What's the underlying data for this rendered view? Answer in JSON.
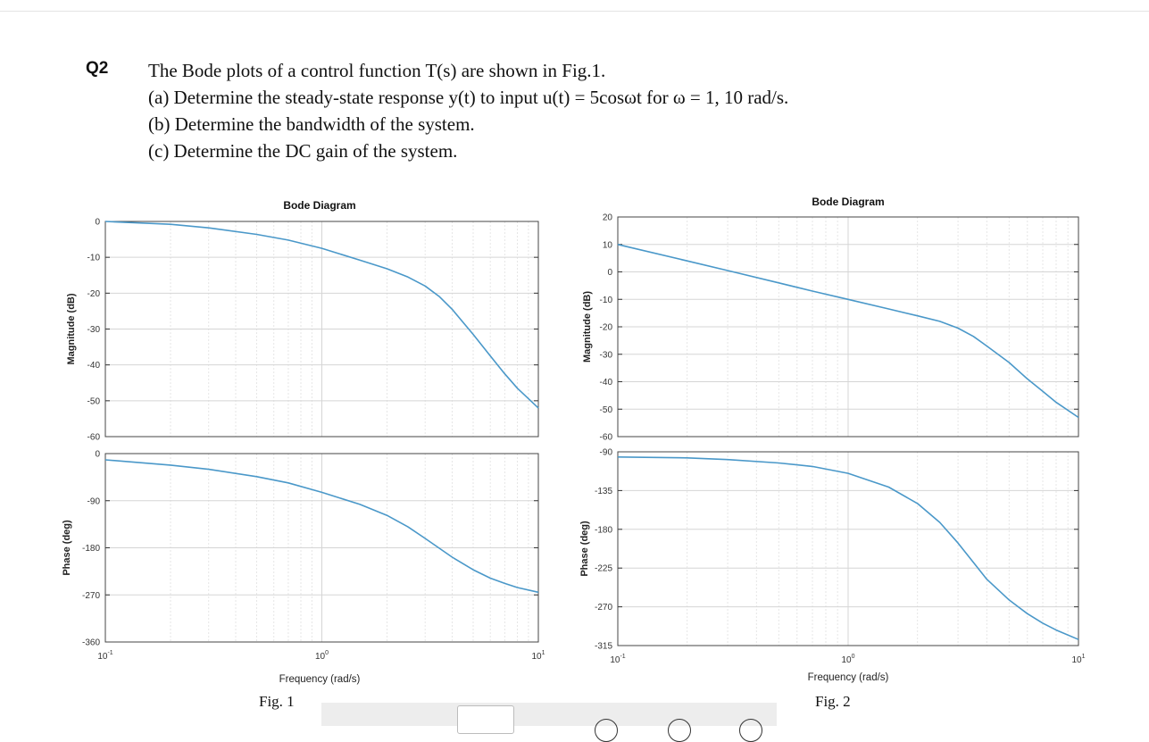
{
  "question": {
    "label": "Q2",
    "intro": "The Bode plots of a control function T(s) are shown in Fig.1.",
    "parts": [
      "(a)  Determine the steady-state response y(t) to input u(t) = 5cosωt for ω = 1,  10 rad/s.",
      "(b)  Determine the bandwidth of the system.",
      "(c)  Determine the DC gain of the system."
    ]
  },
  "chart_data": [
    {
      "type": "line",
      "title": "Bode Diagram",
      "caption": "Fig. 1",
      "xlabel": "Frequency (rad/s)",
      "xscale": "log",
      "xlim": [
        0.1,
        10
      ],
      "xticks": [
        "10-1",
        "100",
        "101"
      ],
      "magnitude": {
        "ylabel": "Magnitude (dB)",
        "ylim": [
          -60,
          0
        ],
        "yticks": [
          0,
          -10,
          -20,
          -30,
          -40,
          -50,
          -60
        ],
        "x": [
          0.1,
          0.2,
          0.3,
          0.5,
          0.7,
          1.0,
          1.5,
          2.0,
          2.5,
          3.0,
          3.5,
          4.0,
          5.0,
          6.0,
          7.0,
          8.0,
          10.0
        ],
        "y": [
          0,
          -0.8,
          -1.8,
          -3.6,
          -5.2,
          -7.5,
          -10.8,
          -13.2,
          -15.5,
          -18,
          -21,
          -24.5,
          -31.5,
          -37.5,
          -42.5,
          -46.5,
          -52
        ]
      },
      "phase": {
        "ylabel": "Phase (deg)",
        "ylim": [
          -360,
          0
        ],
        "yticks": [
          0,
          -90,
          -180,
          -270,
          -360
        ],
        "x": [
          0.1,
          0.2,
          0.3,
          0.5,
          0.7,
          1.0,
          1.5,
          2.0,
          2.5,
          3.0,
          4.0,
          5.0,
          6.0,
          7.0,
          8.0,
          10.0
        ],
        "y": [
          -12,
          -22,
          -30,
          -44,
          -56,
          -74,
          -97,
          -118,
          -140,
          -162,
          -198,
          -222,
          -238,
          -248,
          -256,
          -265
        ]
      },
      "grid": true
    },
    {
      "type": "line",
      "title": "Bode Diagram",
      "caption": "Fig. 2",
      "xlabel": "Frequency (rad/s)",
      "xscale": "log",
      "xlim": [
        0.1,
        10
      ],
      "xticks": [
        "10-1",
        "100",
        "101"
      ],
      "magnitude": {
        "ylabel": "Magnitude (dB)",
        "ylim": [
          -60,
          20
        ],
        "yticks": [
          20,
          10,
          0,
          -10,
          -20,
          -30,
          -40,
          -50,
          -60
        ],
        "x": [
          0.1,
          0.2,
          0.3,
          0.5,
          0.7,
          1.0,
          1.5,
          2.0,
          2.5,
          3.0,
          3.5,
          4.0,
          5.0,
          6.0,
          7.0,
          8.0,
          10.0
        ],
        "y": [
          10,
          4,
          0.5,
          -4,
          -7,
          -10,
          -13.5,
          -16,
          -18,
          -20.5,
          -23.5,
          -27,
          -33,
          -39,
          -43.5,
          -47.5,
          -53
        ]
      },
      "phase": {
        "ylabel": "Phase (deg)",
        "ylim": [
          -315,
          -90
        ],
        "yticks": [
          -90,
          -135,
          -180,
          -225,
          -270,
          -315
        ],
        "x": [
          0.1,
          0.2,
          0.3,
          0.5,
          0.7,
          1.0,
          1.5,
          2.0,
          2.5,
          3.0,
          4.0,
          5.0,
          6.0,
          7.0,
          8.0,
          10.0
        ],
        "y": [
          -96,
          -97,
          -99,
          -103,
          -107,
          -115,
          -131,
          -150,
          -172,
          -196,
          -238,
          -262,
          -278,
          -289,
          -297,
          -308
        ]
      },
      "grid": true
    }
  ]
}
